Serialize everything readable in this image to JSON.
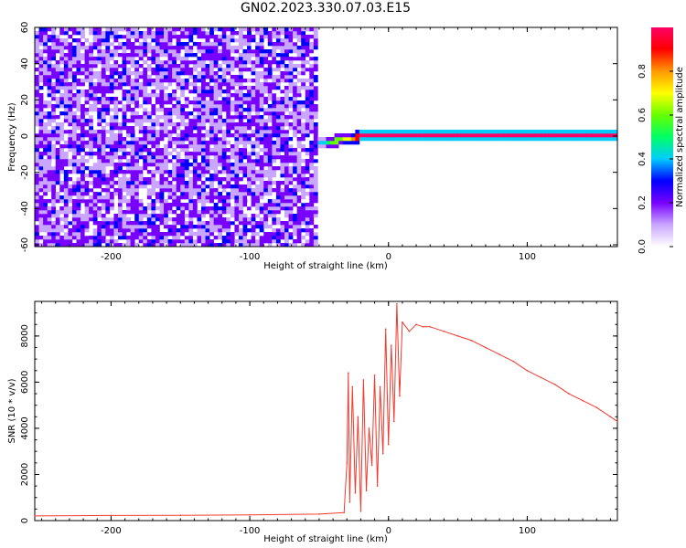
{
  "title": "GN02.2023.330.07.03.E15",
  "chart_data": [
    {
      "type": "heatmap",
      "xlabel": "Height of straight line (km)",
      "ylabel": "Frequency (Hz)",
      "xlim": [
        -255,
        165
      ],
      "ylim": [
        -61,
        60
      ],
      "x_ticks": [
        "-200",
        "-100",
        "0",
        "100"
      ],
      "y_ticks": [
        "60",
        "40",
        "20",
        "0",
        "-20",
        "-40",
        "-60"
      ],
      "regions": [
        {
          "x_range": [
            -255,
            -50
          ],
          "freq_range": [
            -61,
            60
          ],
          "amplitude": "0.0-0.25, noise (purple/white speckle)"
        },
        {
          "x_range": [
            -50,
            -20
          ],
          "freq_center": -4,
          "amplitude": "0.3-1.0 narrow signal band rising from about -4 Hz to 0 Hz"
        },
        {
          "x_range": [
            -20,
            165
          ],
          "freq_center": 0,
          "amplitude": "about 1.0 narrow signal band at 0 Hz"
        }
      ],
      "colorbar": {
        "label": "Normalized spectral amplitude",
        "ticks": [
          "0.0",
          "0.2",
          "0.4",
          "0.6",
          "0.8"
        ],
        "range": [
          0,
          1
        ],
        "colors": [
          "#ffffff",
          "#c9a6ff",
          "#7700ff",
          "#0000ff",
          "#00ccff",
          "#00ff66",
          "#66ff00",
          "#ffff00",
          "#ff9900",
          "#ff0000",
          "#ff0066"
        ]
      }
    },
    {
      "type": "line",
      "xlabel": "Height of straight line (km)",
      "ylabel": "SNR (10 * v/v)",
      "xlim": [
        -255,
        165
      ],
      "ylim": [
        0,
        9500
      ],
      "x_ticks": [
        "-200",
        "-100",
        "0",
        "100"
      ],
      "y_ticks": [
        "0",
        "2000",
        "4000",
        "6000",
        "8000"
      ],
      "color": "#f03a2e",
      "x": [
        -255,
        -200,
        -150,
        -100,
        -50,
        -32,
        -30,
        -29,
        -28,
        -26,
        -24,
        -22,
        -20,
        -18,
        -16,
        -14,
        -12,
        -10,
        -8,
        -6,
        -4,
        -2,
        0,
        2,
        4,
        6,
        8,
        10,
        15,
        20,
        25,
        30,
        40,
        50,
        60,
        70,
        80,
        90,
        100,
        110,
        120,
        130,
        140,
        150,
        160,
        165
      ],
      "values": [
        200,
        220,
        230,
        250,
        280,
        350,
        2500,
        6400,
        800,
        5800,
        1200,
        4500,
        400,
        6100,
        1300,
        4000,
        2400,
        6300,
        1500,
        5800,
        2900,
        8300,
        3300,
        7600,
        4300,
        9400,
        5400,
        8600,
        8200,
        8500,
        8400,
        8400,
        8200,
        8000,
        7800,
        7500,
        7200,
        6900,
        6500,
        6200,
        5900,
        5500,
        5200,
        4900,
        4500,
        4300
      ]
    }
  ]
}
